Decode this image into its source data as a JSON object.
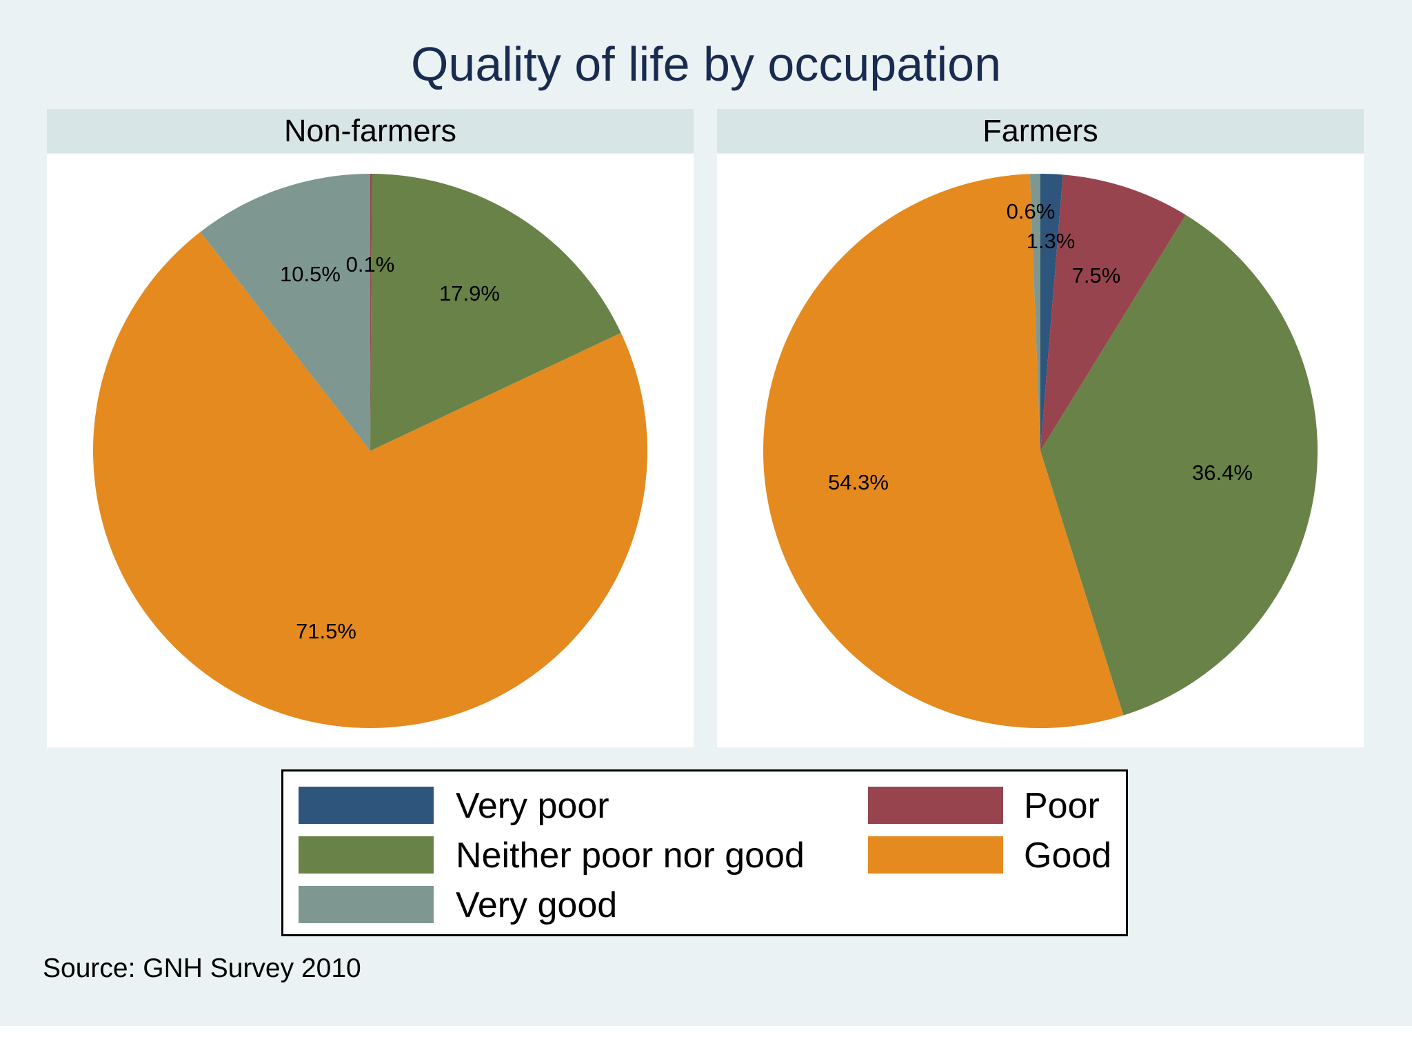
{
  "title": "Quality of life by occupation",
  "source": "Source: GNH Survey 2010",
  "colors": {
    "Very poor": "#2e557c",
    "Poor": "#98444f",
    "Neither poor nor good": "#688247",
    "Good": "#e48a1f",
    "Very good": "#7e9891"
  },
  "legend": {
    "very_poor": "Very poor",
    "poor": "Poor",
    "neither": "Neither poor nor good",
    "good": "Good",
    "very_good": "Very good"
  },
  "chart_data": [
    {
      "type": "pie",
      "title": "Non-farmers",
      "categories": [
        "Very poor",
        "Poor",
        "Neither poor nor good",
        "Good",
        "Very good"
      ],
      "values": [
        0.0,
        0.1,
        17.9,
        71.5,
        10.5
      ],
      "labels": [
        "",
        "0.1%",
        "17.9%",
        "71.5%",
        "10.5%"
      ],
      "start": "12 o'clock",
      "direction": "clockwise"
    },
    {
      "type": "pie",
      "title": "Farmers",
      "categories": [
        "Very poor",
        "Poor",
        "Neither poor nor good",
        "Good",
        "Very good"
      ],
      "values": [
        1.3,
        7.5,
        36.4,
        54.3,
        0.6
      ],
      "labels": [
        "1.3%",
        "7.5%",
        "36.4%",
        "54.3%",
        "0.6%"
      ],
      "start": "12 o'clock",
      "direction": "clockwise"
    }
  ]
}
